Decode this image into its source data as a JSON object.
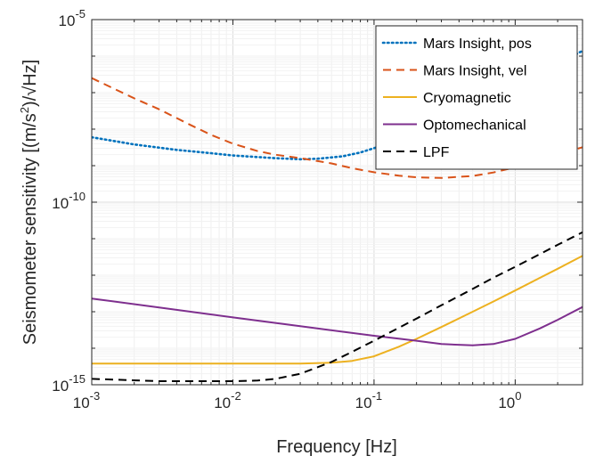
{
  "chart_data": {
    "type": "line",
    "xlabel": "Frequency [Hz]",
    "ylabel_main": "Seismometer sensitivity [(m/s",
    "ylabel_sup": "2",
    "ylabel_tail": ")/√Hz]",
    "x_scale": "log",
    "y_scale": "log",
    "xlim": [
      0.001,
      3
    ],
    "ylim": [
      1e-15,
      1e-05
    ],
    "x_ticks": [
      {
        "value": 0.001,
        "base": "10",
        "exp": "-3"
      },
      {
        "value": 0.01,
        "base": "10",
        "exp": "-2"
      },
      {
        "value": 0.1,
        "base": "10",
        "exp": "-1"
      },
      {
        "value": 1,
        "base": "10",
        "exp": "0"
      }
    ],
    "y_ticks": [
      {
        "value": 1e-15,
        "base": "10",
        "exp": "-15"
      },
      {
        "value": 1e-10,
        "base": "10",
        "exp": "-10"
      },
      {
        "value": 1e-05,
        "base": "10",
        "exp": "-5"
      }
    ],
    "grid": true,
    "legend_position": "top-right",
    "series": [
      {
        "name": "Mars Insight, pos",
        "color": "#0072BD",
        "style": "dotted",
        "points": [
          [
            0.001,
            6e-09
          ],
          [
            0.002,
            3.8e-09
          ],
          [
            0.004,
            2.7e-09
          ],
          [
            0.007,
            2.2e-09
          ],
          [
            0.01,
            1.9e-09
          ],
          [
            0.02,
            1.6e-09
          ],
          [
            0.03,
            1.5e-09
          ],
          [
            0.04,
            1.55e-09
          ],
          [
            0.06,
            1.8e-09
          ],
          [
            0.08,
            2.3e-09
          ],
          [
            0.1,
            3e-09
          ],
          [
            0.15,
            5e-09
          ],
          [
            0.2,
            8e-09
          ],
          [
            0.3,
            1.6e-08
          ],
          [
            0.5,
            4e-08
          ],
          [
            0.7,
            8e-08
          ],
          [
            1.0,
            1.5e-07
          ],
          [
            1.5,
            3.5e-07
          ],
          [
            2.0,
            6e-07
          ],
          [
            3.0,
            1.4e-06
          ]
        ]
      },
      {
        "name": "Mars Insight, vel",
        "color": "#D95319",
        "style": "dashed",
        "points": [
          [
            0.001,
            2.5e-07
          ],
          [
            0.002,
            7e-08
          ],
          [
            0.003,
            3.5e-08
          ],
          [
            0.005,
            1.3e-08
          ],
          [
            0.007,
            7e-09
          ],
          [
            0.01,
            4e-09
          ],
          [
            0.015,
            2.5e-09
          ],
          [
            0.02,
            2e-09
          ],
          [
            0.03,
            1.6e-09
          ],
          [
            0.05,
            1.15e-09
          ],
          [
            0.07,
            8.5e-10
          ],
          [
            0.1,
            6.6e-10
          ],
          [
            0.15,
            5.3e-10
          ],
          [
            0.2,
            4.8e-10
          ],
          [
            0.3,
            4.6e-10
          ],
          [
            0.5,
            5.2e-10
          ],
          [
            0.7,
            6.5e-10
          ],
          [
            1.0,
            9e-10
          ],
          [
            1.5,
            1.4e-09
          ],
          [
            2.0,
            2e-09
          ],
          [
            3.0,
            3.2e-09
          ]
        ]
      },
      {
        "name": "Cryomagnetic",
        "color": "#EDB120",
        "style": "solid",
        "points": [
          [
            0.001,
            3.8e-15
          ],
          [
            0.01,
            3.8e-15
          ],
          [
            0.03,
            3.8e-15
          ],
          [
            0.05,
            4e-15
          ],
          [
            0.07,
            4.5e-15
          ],
          [
            0.1,
            6e-15
          ],
          [
            0.15,
            1.1e-14
          ],
          [
            0.2,
            1.8e-14
          ],
          [
            0.3,
            3.8e-14
          ],
          [
            0.5,
            1e-13
          ],
          [
            0.7,
            1.9e-13
          ],
          [
            1.0,
            3.8e-13
          ],
          [
            1.5,
            8.5e-13
          ],
          [
            2.0,
            1.5e-12
          ],
          [
            3.0,
            3.4e-12
          ]
        ]
      },
      {
        "name": "Optomechanical",
        "color": "#7E2F8E",
        "style": "solid",
        "points": [
          [
            0.001,
            2.3e-13
          ],
          [
            0.003,
            1.3e-13
          ],
          [
            0.01,
            7e-14
          ],
          [
            0.03,
            4e-14
          ],
          [
            0.1,
            2.2e-14
          ],
          [
            0.2,
            1.6e-14
          ],
          [
            0.3,
            1.3e-14
          ],
          [
            0.5,
            1.2e-14
          ],
          [
            0.7,
            1.3e-14
          ],
          [
            1.0,
            1.8e-14
          ],
          [
            1.5,
            3.5e-14
          ],
          [
            2.0,
            6e-14
          ],
          [
            3.0,
            1.35e-13
          ]
        ]
      },
      {
        "name": "LPF",
        "color": "#000000",
        "style": "dashed",
        "points": [
          [
            0.001,
            1.45e-15
          ],
          [
            0.003,
            1.25e-15
          ],
          [
            0.01,
            1.25e-15
          ],
          [
            0.015,
            1.3e-15
          ],
          [
            0.02,
            1.45e-15
          ],
          [
            0.03,
            2e-15
          ],
          [
            0.05,
            4.2e-15
          ],
          [
            0.07,
            8e-15
          ],
          [
            0.1,
            1.6e-14
          ],
          [
            0.2,
            6.5e-14
          ],
          [
            0.3,
            1.5e-13
          ],
          [
            0.5,
            4.2e-13
          ],
          [
            0.7,
            8.5e-13
          ],
          [
            1.0,
            1.7e-12
          ],
          [
            1.5,
            3.8e-12
          ],
          [
            2.0,
            6.8e-12
          ],
          [
            3.0,
            1.5e-11
          ]
        ]
      }
    ]
  }
}
